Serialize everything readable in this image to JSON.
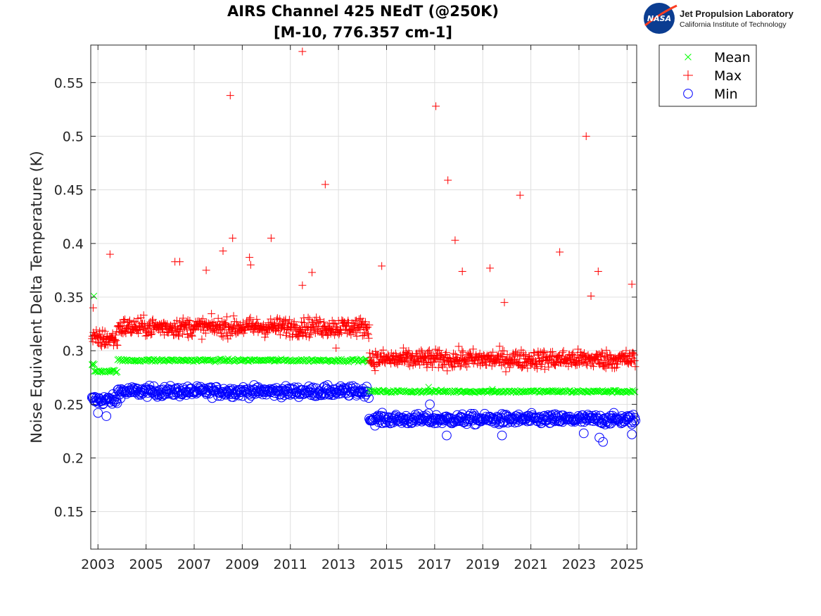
{
  "logo": {
    "nasa_text": "NASA",
    "title": "Jet Propulsion Laboratory",
    "subtitle": "California Institute of Technology",
    "nasa_blue": "#0b3d91",
    "nasa_red": "#fc3d21"
  },
  "chart_data": {
    "type": "scatter",
    "title": [
      "AIRS Channel 425 NEdT (@250K)",
      "[M-10, 776.357 cm-1]"
    ],
    "xlabel": "",
    "ylabel": "Noise Equivalent Delta Temperature (K)",
    "xlim": [
      2002.7,
      2025.4
    ],
    "ylim": [
      0.115,
      0.585
    ],
    "xticks": [
      2003,
      2005,
      2007,
      2009,
      2011,
      2013,
      2015,
      2017,
      2019,
      2021,
      2023,
      2025
    ],
    "xtick_labels": [
      "2003",
      "2005",
      "2007",
      "2009",
      "2011",
      "2013",
      "2015",
      "2017",
      "2019",
      "2021",
      "2023",
      "2025"
    ],
    "yticks": [
      0.15,
      0.2,
      0.25,
      0.3,
      0.35,
      0.4,
      0.45,
      0.5,
      0.55
    ],
    "ytick_labels": [
      "0.15",
      "0.2",
      "0.25",
      "0.3",
      "0.35",
      "0.4",
      "0.45",
      "0.5",
      "0.55"
    ],
    "grid": true,
    "legend_position": "outside-top-right",
    "series": [
      {
        "name": "Mean",
        "marker": "x",
        "color": "#00ff00",
        "segments": [
          {
            "x_start": 2002.75,
            "x_end": 2002.85,
            "y": 0.287
          },
          {
            "x_start": 2002.85,
            "x_end": 2003.82,
            "y": 0.281
          },
          {
            "x_start": 2003.82,
            "x_end": 2014.28,
            "y": 0.291
          },
          {
            "x_start": 2014.28,
            "x_end": 2025.35,
            "y": 0.262
          }
        ],
        "points": [
          {
            "x": 2002.83,
            "y": 0.351
          },
          {
            "x": 2002.78,
            "y": 0.287
          },
          {
            "x": 2016.75,
            "y": 0.266
          },
          {
            "x": 2019.4,
            "y": 0.264
          }
        ]
      },
      {
        "name": "Max",
        "marker": "+",
        "color": "#ff0000",
        "segments": [
          {
            "x_start": 2002.75,
            "x_end": 2003.82,
            "y": 0.311
          },
          {
            "x_start": 2003.82,
            "x_end": 2014.28,
            "y": 0.322
          },
          {
            "x_start": 2014.28,
            "x_end": 2025.35,
            "y": 0.292
          }
        ],
        "points": [
          {
            "x": 2003.5,
            "y": 0.39
          },
          {
            "x": 2002.8,
            "y": 0.34
          },
          {
            "x": 2006.2,
            "y": 0.383
          },
          {
            "x": 2006.4,
            "y": 0.383
          },
          {
            "x": 2007.5,
            "y": 0.375
          },
          {
            "x": 2008.2,
            "y": 0.393
          },
          {
            "x": 2008.6,
            "y": 0.405
          },
          {
            "x": 2008.5,
            "y": 0.538
          },
          {
            "x": 2009.3,
            "y": 0.387
          },
          {
            "x": 2009.35,
            "y": 0.38
          },
          {
            "x": 2010.2,
            "y": 0.405
          },
          {
            "x": 2011.5,
            "y": 0.579
          },
          {
            "x": 2011.5,
            "y": 0.361
          },
          {
            "x": 2011.9,
            "y": 0.373
          },
          {
            "x": 2012.45,
            "y": 0.455
          },
          {
            "x": 2012.9,
            "y": 0.3025
          },
          {
            "x": 2014.8,
            "y": 0.379
          },
          {
            "x": 2017.05,
            "y": 0.528
          },
          {
            "x": 2017.55,
            "y": 0.459
          },
          {
            "x": 2017.85,
            "y": 0.403
          },
          {
            "x": 2018.15,
            "y": 0.374
          },
          {
            "x": 2019.3,
            "y": 0.377
          },
          {
            "x": 2019.9,
            "y": 0.345
          },
          {
            "x": 2020.55,
            "y": 0.445
          },
          {
            "x": 2022.2,
            "y": 0.392
          },
          {
            "x": 2023.3,
            "y": 0.5
          },
          {
            "x": 2023.8,
            "y": 0.374
          },
          {
            "x": 2023.5,
            "y": 0.351
          },
          {
            "x": 2025.2,
            "y": 0.362
          }
        ]
      },
      {
        "name": "Min",
        "marker": "o",
        "color": "#0000ff",
        "segments": [
          {
            "x_start": 2002.75,
            "x_end": 2003.82,
            "y": 0.254
          },
          {
            "x_start": 2003.82,
            "x_end": 2014.28,
            "y": 0.262
          },
          {
            "x_start": 2014.28,
            "x_end": 2025.35,
            "y": 0.236
          }
        ],
        "points": [
          {
            "x": 2003.0,
            "y": 0.242
          },
          {
            "x": 2003.35,
            "y": 0.239
          },
          {
            "x": 2016.8,
            "y": 0.25
          },
          {
            "x": 2017.5,
            "y": 0.221
          },
          {
            "x": 2019.8,
            "y": 0.221
          },
          {
            "x": 2023.2,
            "y": 0.223
          },
          {
            "x": 2023.85,
            "y": 0.219
          },
          {
            "x": 2024.0,
            "y": 0.215
          },
          {
            "x": 2025.2,
            "y": 0.222
          }
        ]
      }
    ]
  }
}
